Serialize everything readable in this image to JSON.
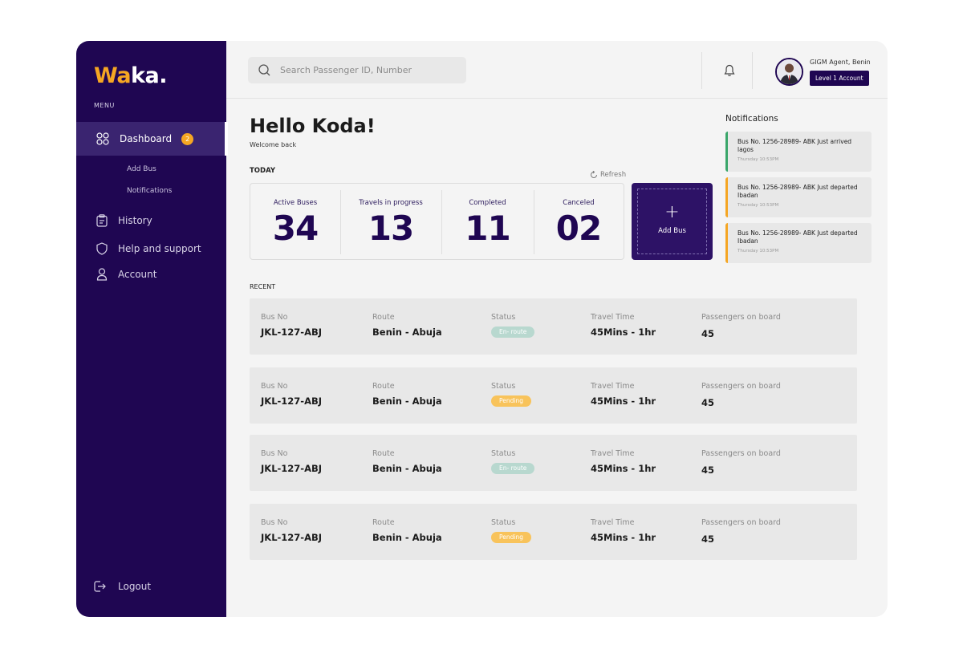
{
  "brand": {
    "logo_primary": "Wa",
    "logo_secondary": "ka.",
    "accent_color": "#f5a623",
    "sidebar_color": "#1f0652"
  },
  "sidebar": {
    "menu_label": "MENU",
    "active": {
      "label": "Dashboard",
      "badge": "2",
      "icon": "dashboard-grid-icon"
    },
    "sub_items": [
      {
        "label": "Add Bus"
      },
      {
        "label": "Notifications"
      }
    ],
    "items": [
      {
        "label": "History",
        "icon": "clipboard-icon"
      },
      {
        "label": "Help and support",
        "icon": "shield-icon"
      },
      {
        "label": "Account",
        "icon": "user-icon"
      }
    ],
    "logout_label": "Logout"
  },
  "header": {
    "search_placeholder": "Search Passenger ID, Number",
    "agent_name": "GIGM Agent, Benin",
    "account_level": "Level 1 Account"
  },
  "main": {
    "greeting": "Hello Koda!",
    "welcome": "Welcome back",
    "today_label": "TODAY",
    "refresh_label": "Refresh",
    "stats": [
      {
        "label": "Active Buses",
        "value": "34"
      },
      {
        "label": "Travels in progress",
        "value": "13"
      },
      {
        "label": "Completed",
        "value": "11"
      },
      {
        "label": "Canceled",
        "value": "02"
      }
    ],
    "add_bus_label": "Add Bus",
    "recent_label": "RECENT",
    "columns": {
      "bus_no": "Bus No",
      "route": "Route",
      "status": "Status",
      "travel_time": "Travel Time",
      "passengers": "Passengers on board"
    },
    "rows": [
      {
        "bus_no": "JKL-127-ABJ",
        "route": "Benin - Abuja",
        "status": "En- route",
        "travel_time": "45Mins - 1hr",
        "passengers": "45"
      },
      {
        "bus_no": "JKL-127-ABJ",
        "route": "Benin - Abuja",
        "status": "Pending",
        "travel_time": "45Mins - 1hr",
        "passengers": "45"
      },
      {
        "bus_no": "JKL-127-ABJ",
        "route": "Benin - Abuja",
        "status": "En- route",
        "travel_time": "45Mins - 1hr",
        "passengers": "45"
      },
      {
        "bus_no": "JKL-127-ABJ",
        "route": "Benin - Abuja",
        "status": "Pending",
        "travel_time": "45Mins - 1hr",
        "passengers": "45"
      }
    ]
  },
  "notifications": {
    "title": "Notifications",
    "items": [
      {
        "message": "Bus No. 1256-28989- ABK Just arrived lagos",
        "time": "Thursday 10:53PM",
        "color": "#3aa66a"
      },
      {
        "message": "Bus No. 1256-28989- ABK Just departed Ibadan",
        "time": "Thursday 10:53PM",
        "color": "#f5a623"
      },
      {
        "message": "Bus No. 1256-28989- ABK Just departed Ibadan",
        "time": "Thursday 10:53PM",
        "color": "#f5a623"
      }
    ]
  }
}
